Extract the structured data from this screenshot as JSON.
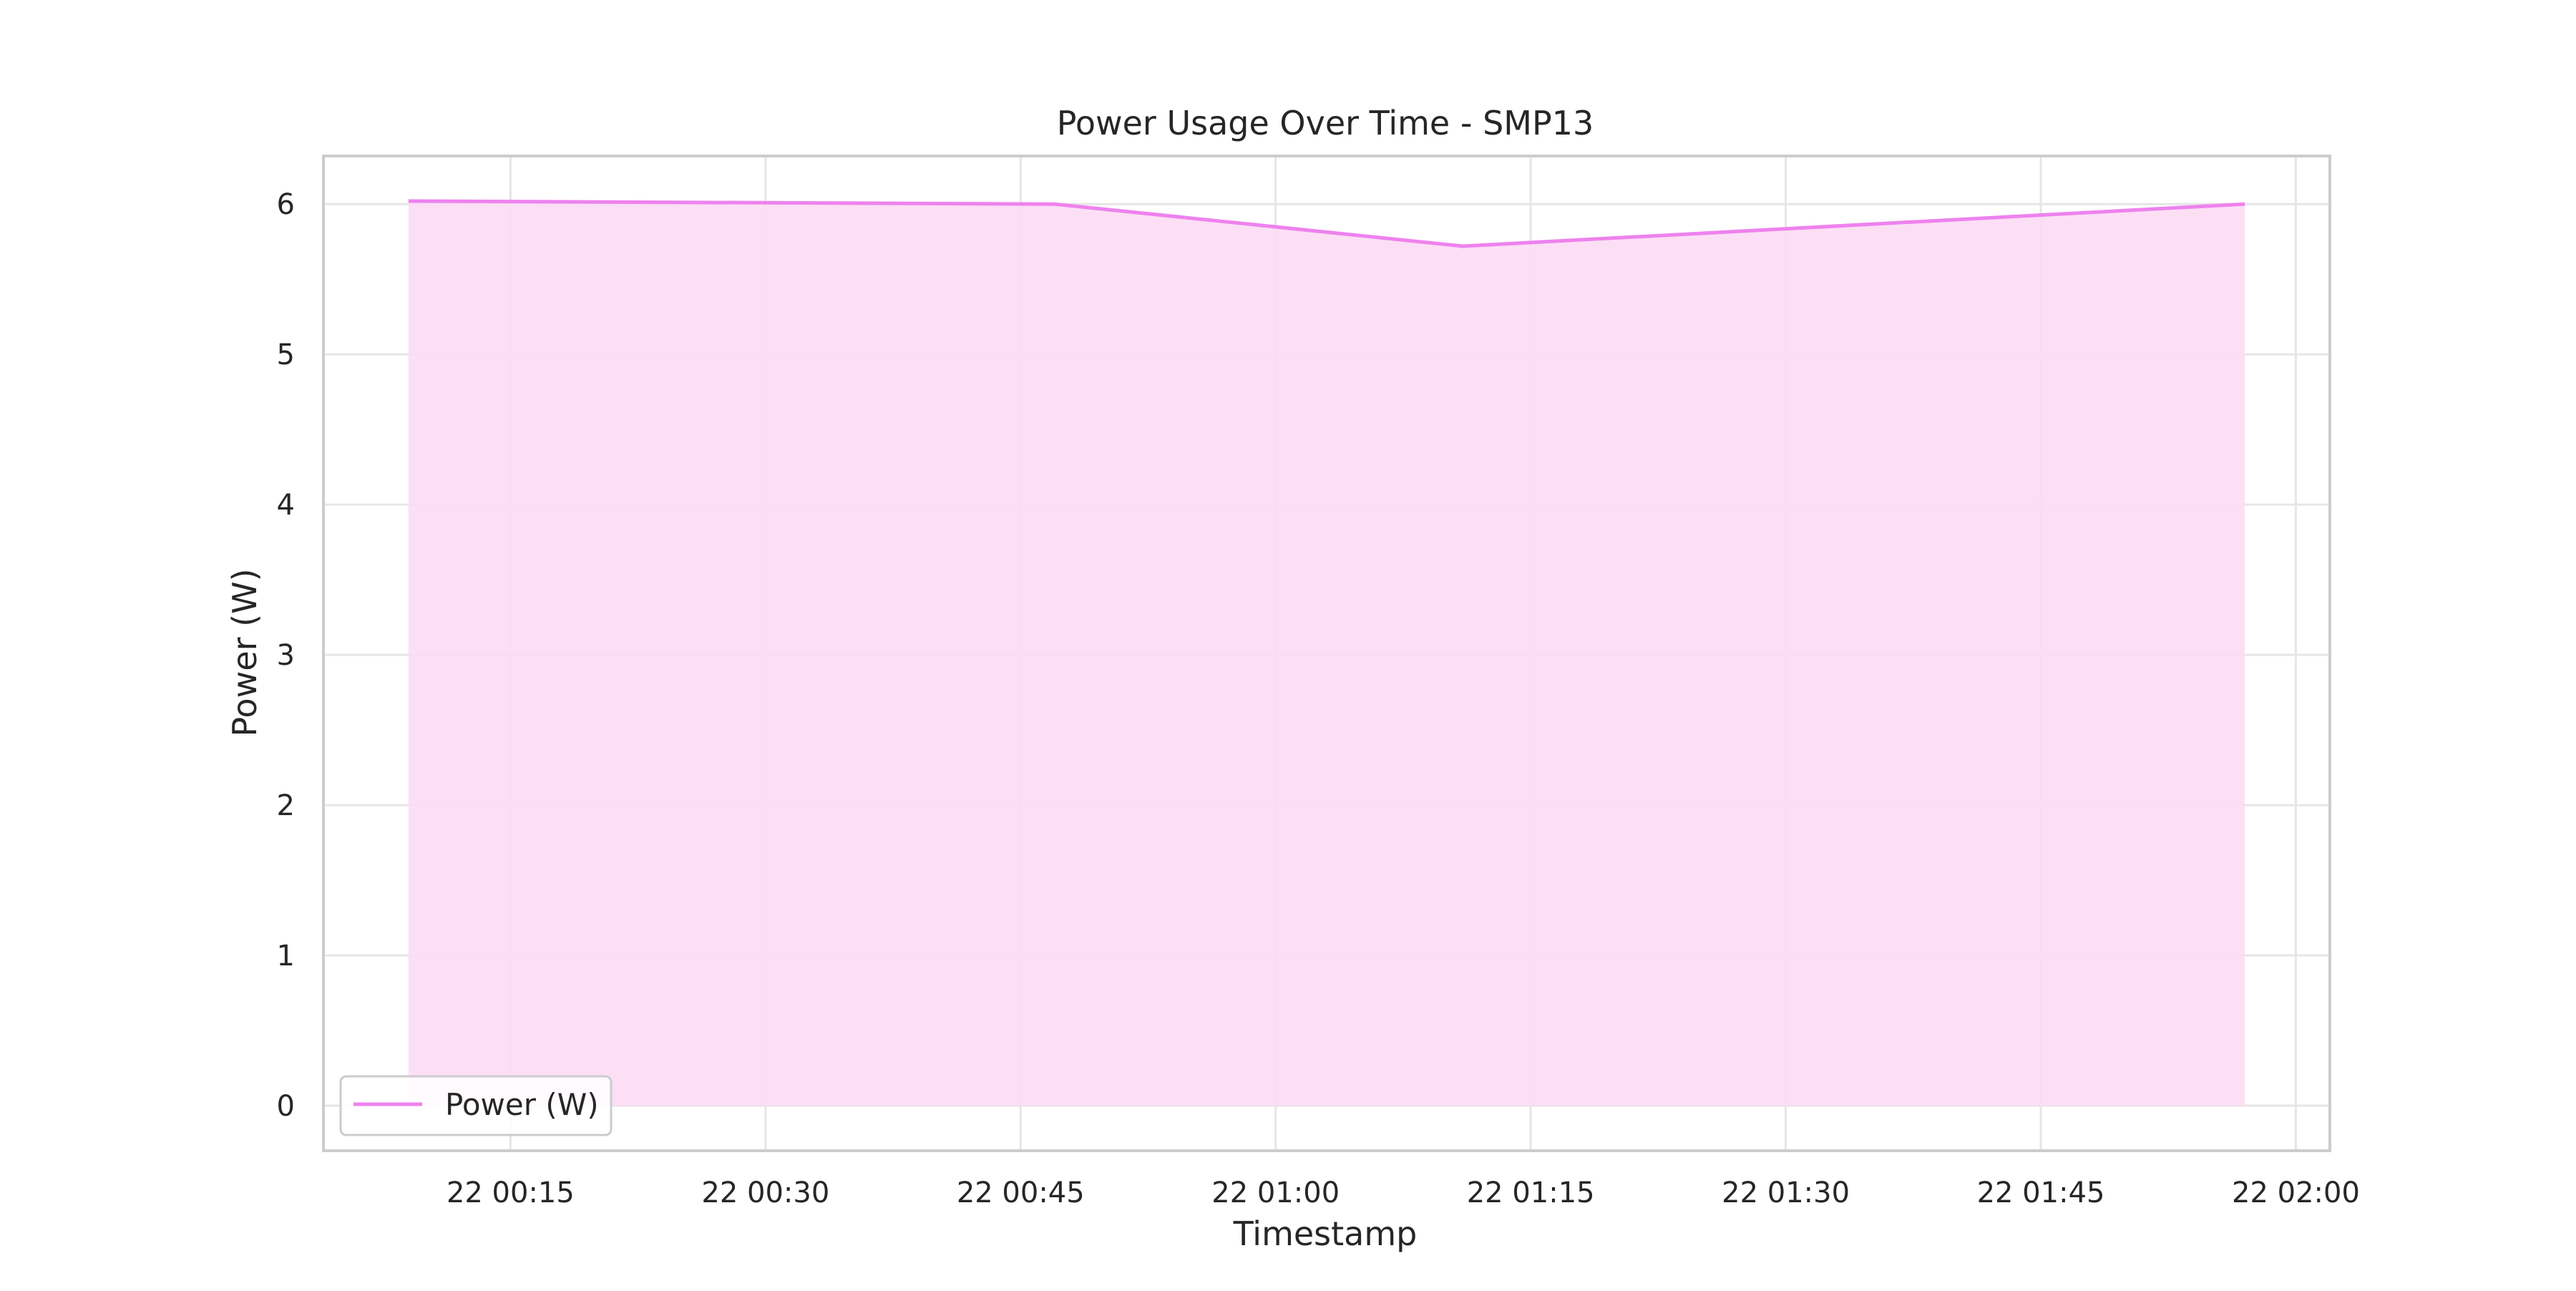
{
  "chart_data": {
    "type": "area",
    "title": "Power Usage Over Time - SMP13",
    "xlabel": "Timestamp",
    "ylabel": "Power (W)",
    "x": [
      "2024-01-22T00:09",
      "2024-01-22T00:47",
      "2024-01-22T01:11",
      "2024-01-22T01:57"
    ],
    "series": [
      {
        "name": "Power (W)",
        "values": [
          6.02,
          6.0,
          5.72,
          6.0
        ],
        "color": "#ee82ee"
      }
    ],
    "xlim": [
      "2024-01-22T00:04",
      "2024-01-22T02:02"
    ],
    "ylim": [
      -0.3,
      6.32
    ],
    "x_ticks": [
      {
        "value": "2024-01-22T00:15",
        "label": "22 00:15"
      },
      {
        "value": "2024-01-22T00:30",
        "label": "22 00:30"
      },
      {
        "value": "2024-01-22T00:45",
        "label": "22 00:45"
      },
      {
        "value": "2024-01-22T01:00",
        "label": "22 01:00"
      },
      {
        "value": "2024-01-22T01:15",
        "label": "22 01:15"
      },
      {
        "value": "2024-01-22T01:30",
        "label": "22 01:30"
      },
      {
        "value": "2024-01-22T01:45",
        "label": "22 01:45"
      },
      {
        "value": "2024-01-22T02:00",
        "label": "22 02:00"
      }
    ],
    "y_ticks": [
      0,
      1,
      2,
      3,
      4,
      5,
      6
    ],
    "grid": true,
    "legend_position": "lower-left",
    "fill_color": "#fcdcf4",
    "grid_color": "#e6e6e6",
    "frame_color": "#cccccc"
  }
}
